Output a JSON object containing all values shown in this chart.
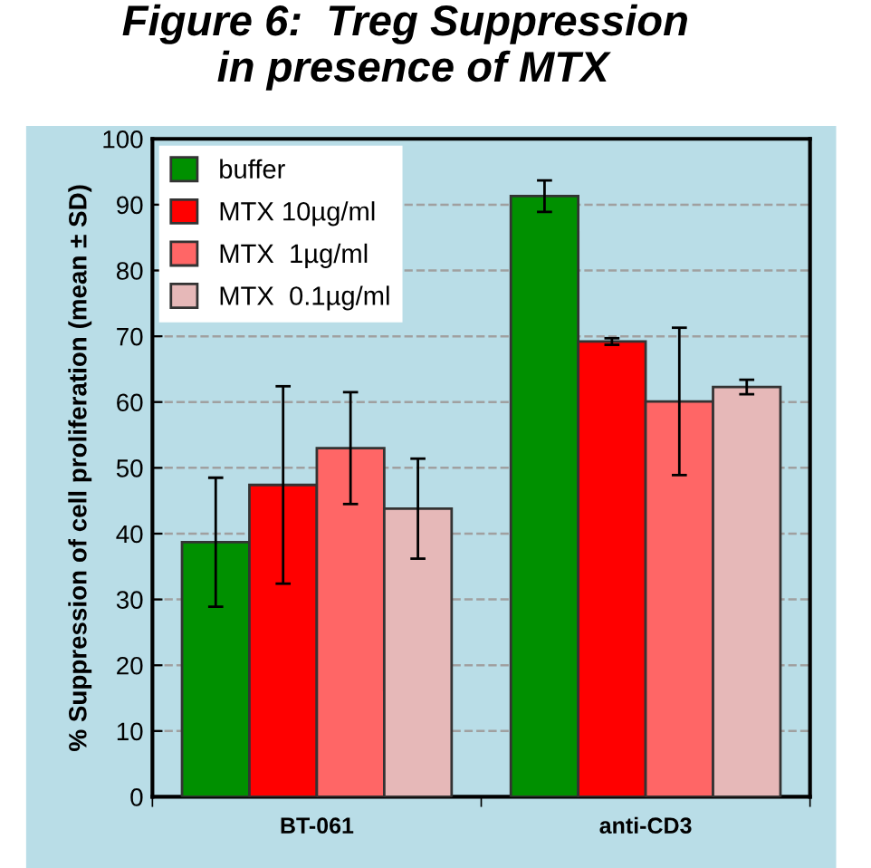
{
  "chart_data": {
    "type": "bar",
    "title": "Figure 6:  Treg Suppression\n        in presence of MTX",
    "ylabel": "% Suppression of cell proliferation (mean ± SD)",
    "categories": [
      "BT-061",
      "anti-CD3"
    ],
    "series": [
      {
        "name": "buffer",
        "color": "#009000",
        "values": [
          38.7,
          91.3
        ],
        "errors": [
          9.8,
          2.4
        ]
      },
      {
        "name": "MTX 10µg/ml",
        "color": "#ff0000",
        "values": [
          47.4,
          69.2
        ],
        "errors": [
          15,
          0.5
        ]
      },
      {
        "name": "MTX  1µg/ml",
        "color": "#ff6666",
        "values": [
          53,
          60.1
        ],
        "errors": [
          8.5,
          11.2
        ]
      },
      {
        "name": "MTX  0.1µg/ml",
        "color": "#e6b8b8",
        "values": [
          43.8,
          62.3
        ],
        "errors": [
          7.6,
          1.1
        ]
      }
    ],
    "ylim": [
      0,
      100
    ],
    "yticks": [
      0,
      10,
      20,
      30,
      40,
      50,
      60,
      70,
      80,
      90,
      100
    ],
    "grid": "y",
    "legend": "top left"
  }
}
